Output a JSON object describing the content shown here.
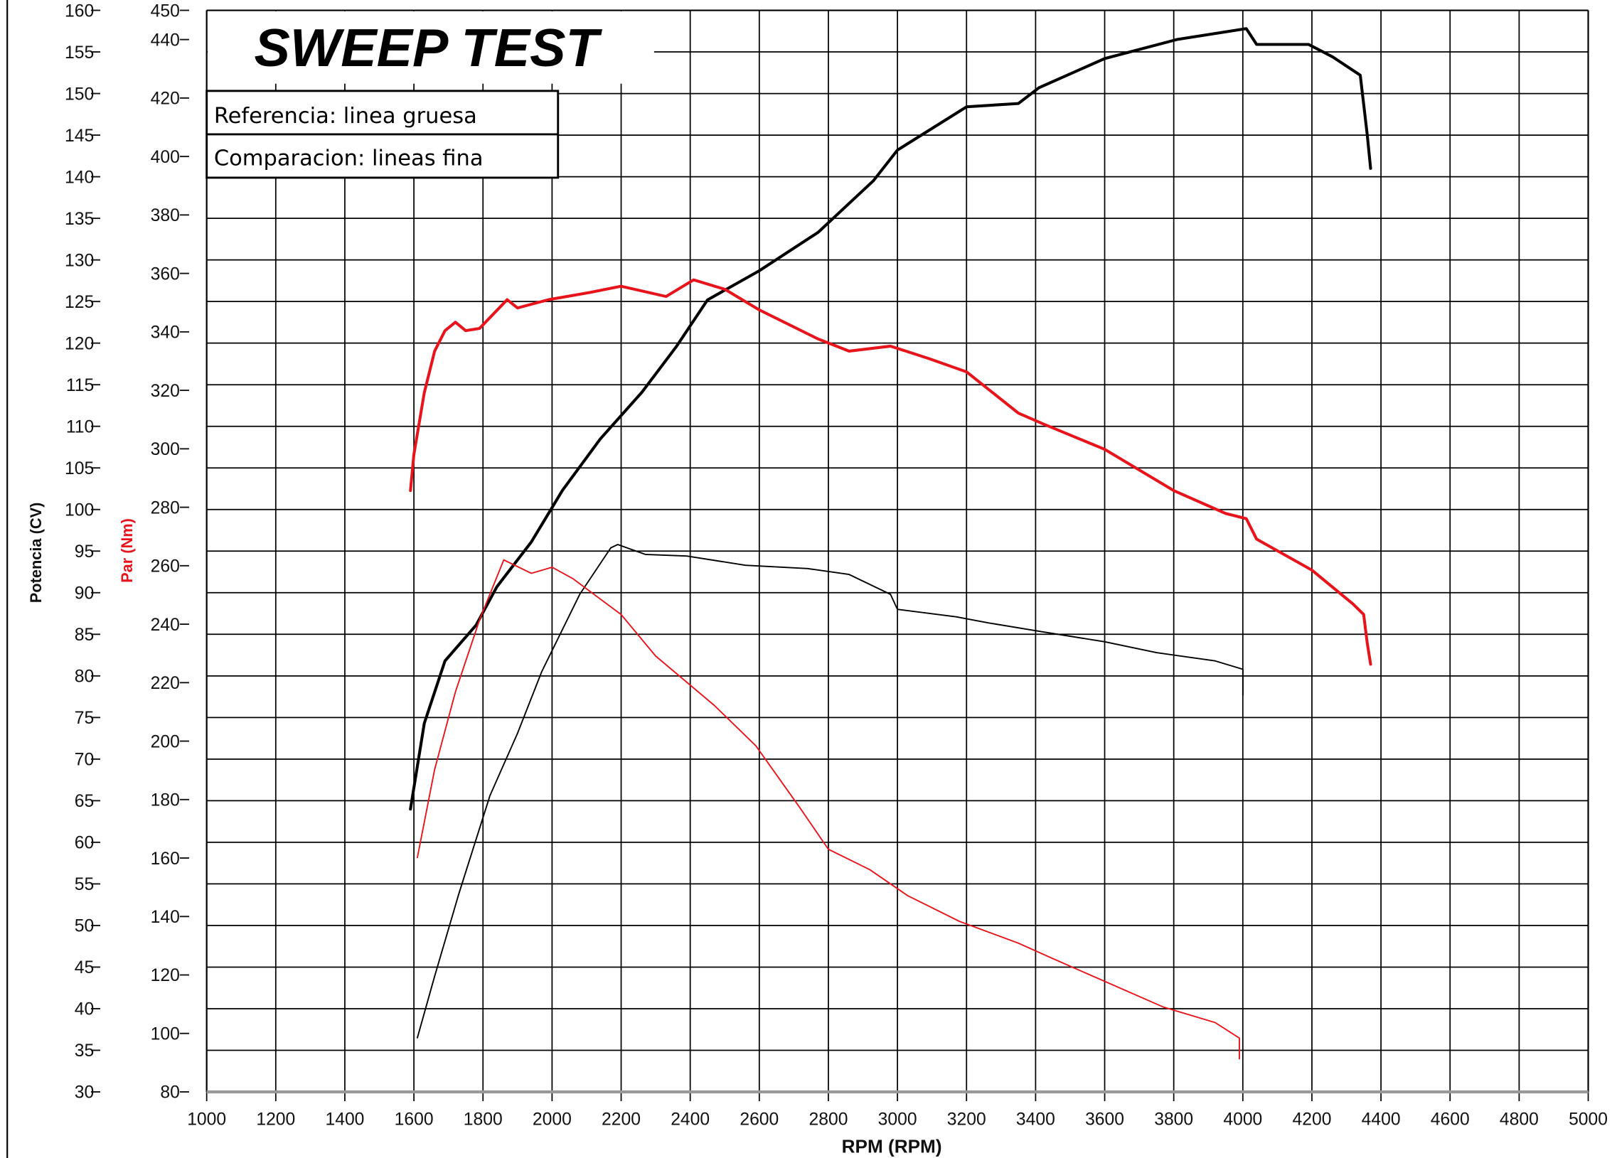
{
  "chart_data": {
    "type": "line",
    "title": "SWEEP TEST",
    "legend": [
      "Referencia: linea gruesa",
      "Comparacion: lineas fina"
    ],
    "legend_placement": "top-left",
    "xlabel": "RPM (RPM)",
    "ylabel_power": "Potencia (CV)",
    "ylabel_torque": "Par (Nm)",
    "xlim": [
      1000,
      5000
    ],
    "ylim_power": [
      30,
      160
    ],
    "ylim_torque": [
      80,
      450
    ],
    "grid": true,
    "x_ticks": [
      "1000",
      "1200",
      "1400",
      "1600",
      "1800",
      "2000",
      "2200",
      "2400",
      "2600",
      "2800",
      "3000",
      "3200",
      "3400",
      "3600",
      "3800",
      "4000",
      "4200",
      "4400",
      "4600",
      "4800",
      "5000"
    ],
    "power_ticks": [
      "30",
      "35",
      "40",
      "45",
      "50",
      "55",
      "60",
      "65",
      "70",
      "75",
      "80",
      "85",
      "90",
      "95",
      "100",
      "105",
      "110",
      "115",
      "120",
      "125",
      "130",
      "135",
      "140",
      "145",
      "150",
      "155",
      "160"
    ],
    "torque_ticks": [
      "80",
      "100",
      "120",
      "140",
      "160",
      "180",
      "200",
      "220",
      "240",
      "260",
      "280",
      "300",
      "320",
      "340",
      "360",
      "380",
      "400",
      "420",
      "440",
      "450"
    ],
    "colors": {
      "power": "#000000",
      "torque": "#e8141b",
      "grid": "#000000"
    },
    "series": [
      {
        "axis": "power",
        "line": "thick",
        "color": "#000000",
        "x": [
          1590,
          1630,
          1690,
          1780,
          1840,
          1940,
          2030,
          2140,
          2260,
          2360,
          2450,
          2600,
          2770,
          2930,
          3000,
          3200,
          3350,
          3410,
          3600,
          3810,
          4010,
          4040,
          4190,
          4260,
          4340,
          4360,
          4370
        ],
        "y": [
          64.0,
          74.3,
          81.8,
          86.1,
          90.7,
          96.1,
          102.3,
          108.5,
          114.1,
          119.6,
          125.2,
          128.7,
          133.3,
          139.5,
          143.2,
          148.4,
          148.8,
          150.7,
          154.2,
          156.5,
          157.8,
          155.9,
          155.9,
          154.4,
          152.2,
          145.1,
          141.0
        ]
      },
      {
        "axis": "torque",
        "line": "thick",
        "color": "#e8141b",
        "x": [
          1590,
          1600,
          1630,
          1660,
          1690,
          1720,
          1750,
          1790,
          1870,
          1900,
          1990,
          2110,
          2200,
          2330,
          2410,
          2500,
          2600,
          2770,
          2860,
          2980,
          3090,
          3200,
          3350,
          3420,
          3600,
          3800,
          3950,
          4010,
          4040,
          4200,
          4320,
          4350,
          4360,
          4370
        ],
        "y": [
          285.7,
          298.0,
          319.2,
          333.4,
          340.4,
          343.3,
          340.4,
          341.2,
          351.0,
          348.2,
          351.0,
          353.5,
          355.6,
          352.1,
          357.8,
          354.6,
          347.5,
          337.6,
          333.4,
          335.1,
          330.9,
          326.3,
          312.2,
          308.6,
          299.8,
          285.7,
          277.9,
          276.1,
          269.1,
          258.5,
          246.8,
          243.3,
          233.7,
          226.3
        ]
      },
      {
        "axis": "power",
        "line": "thin",
        "color": "#000000",
        "x": [
          1610,
          1660,
          1730,
          1820,
          1900,
          1970,
          2080,
          2170,
          2190,
          2270,
          2390,
          2560,
          2740,
          2860,
          2980,
          3000,
          3170,
          3260,
          3420,
          3600,
          3750,
          3920,
          4000,
          4000
        ],
        "y": [
          36.5,
          43.9,
          53.8,
          65.6,
          73.1,
          80.5,
          89.8,
          95.4,
          95.8,
          94.6,
          94.4,
          93.3,
          92.9,
          92.2,
          89.8,
          88.0,
          87.1,
          86.4,
          85.3,
          84.1,
          82.8,
          81.8,
          80.8,
          77.7
        ]
      },
      {
        "axis": "torque",
        "line": "thin",
        "color": "#e8141b",
        "x": [
          1610,
          1660,
          1720,
          1790,
          1860,
          1940,
          2000,
          2060,
          2200,
          2300,
          2470,
          2590,
          2720,
          2800,
          2920,
          3030,
          3180,
          3350,
          3450,
          3600,
          3770,
          3920,
          3990,
          3990
        ],
        "y": [
          160.2,
          190.3,
          216.8,
          241.5,
          262.0,
          257.4,
          259.5,
          255.6,
          243.3,
          229.1,
          212.2,
          198.4,
          176.8,
          163.0,
          156.0,
          147.1,
          138.3,
          130.9,
          125.6,
          117.8,
          109.0,
          103.7,
          98.4,
          91.3
        ]
      }
    ]
  }
}
